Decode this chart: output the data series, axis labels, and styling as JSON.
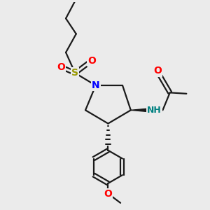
{
  "bg_color": "#ebebeb",
  "bond_color": "#1a1a1a",
  "N_color": "#0000ff",
  "O_color": "#ff0000",
  "S_color": "#999900",
  "NH_color": "#008080",
  "lw": 1.6,
  "dbo": 0.09,
  "figsize": [
    3.0,
    3.0
  ],
  "dpi": 100,
  "xlim": [
    0,
    10
  ],
  "ylim": [
    0,
    10
  ]
}
